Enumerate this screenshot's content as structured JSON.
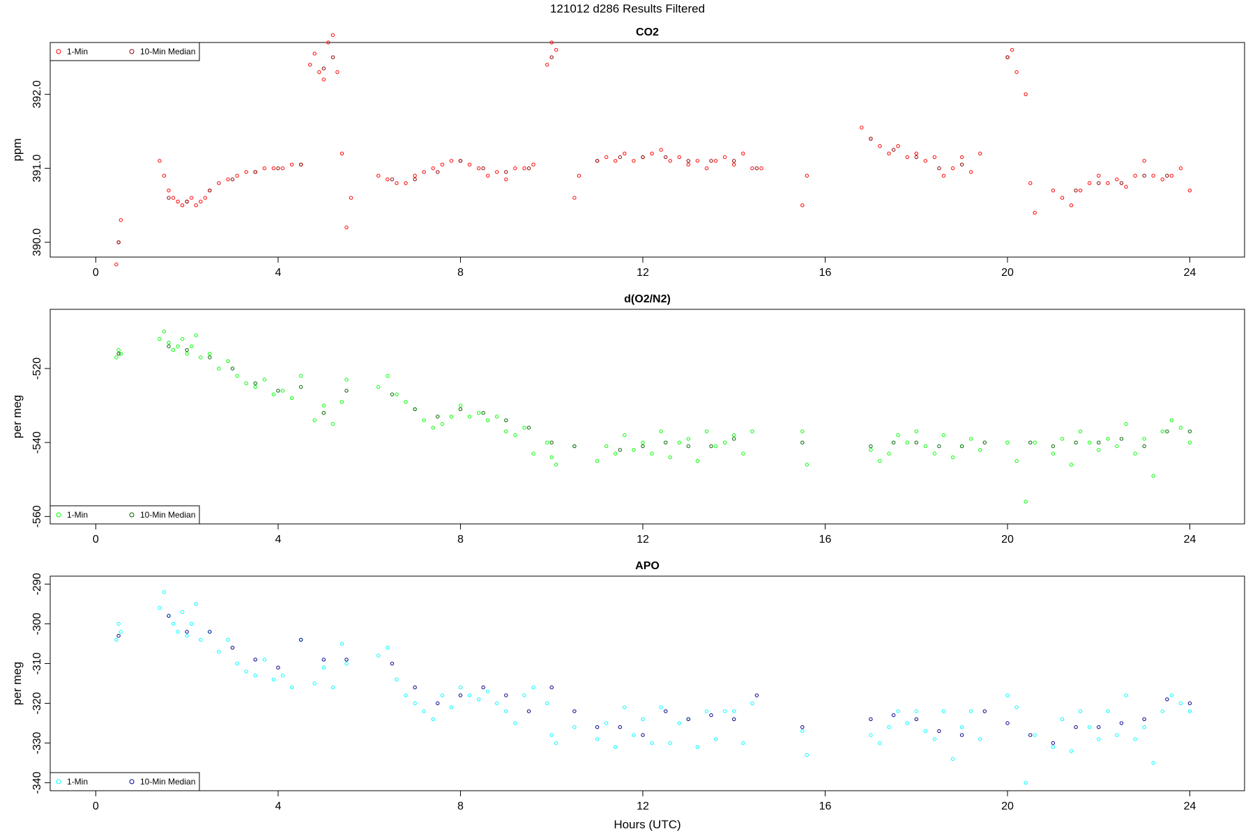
{
  "page": {
    "title": "121012   d286   Results Filtered"
  },
  "chart_data": [
    {
      "type": "scatter",
      "title": "CO2",
      "xlabel": "",
      "ylabel": "ppm",
      "xlim": [
        -1.0,
        25.2
      ],
      "ylim": [
        389.8,
        392.7
      ],
      "xticks": [
        0,
        4,
        8,
        12,
        16,
        20,
        24
      ],
      "xtick_labels": [
        "0",
        "4",
        "8",
        "12",
        "16",
        "20",
        "24"
      ],
      "yticks": [
        390.0,
        391.0,
        392.0
      ],
      "ytick_labels": [
        "390.0",
        "391.0",
        "392.0"
      ],
      "legend": {
        "placement": "top-left",
        "entries": [
          "1-Min",
          "10-Min Median"
        ]
      },
      "series": [
        {
          "name": "1-Min",
          "color": "#ff0000",
          "x": [
            0.45,
            0.5,
            0.55,
            1.4,
            1.5,
            1.6,
            1.7,
            1.8,
            1.9,
            2.0,
            2.1,
            2.2,
            2.3,
            2.4,
            2.5,
            2.7,
            2.9,
            3.1,
            3.3,
            3.5,
            3.7,
            3.9,
            4.1,
            4.3,
            4.5,
            4.7,
            4.8,
            4.9,
            5.0,
            5.1,
            5.2,
            5.3,
            5.4,
            5.5,
            5.6,
            6.2,
            6.4,
            6.6,
            6.8,
            7.0,
            7.2,
            7.4,
            7.6,
            7.8,
            8.0,
            8.2,
            8.4,
            8.6,
            8.8,
            9.0,
            9.2,
            9.4,
            9.6,
            9.9,
            10.0,
            10.1,
            10.5,
            10.6,
            11.0,
            11.2,
            11.4,
            11.6,
            11.8,
            12.0,
            12.2,
            12.4,
            12.6,
            12.8,
            13.0,
            13.2,
            13.4,
            13.6,
            13.8,
            14.0,
            14.2,
            14.4,
            14.6,
            15.5,
            15.6,
            16.8,
            17.0,
            17.2,
            17.4,
            17.6,
            17.8,
            18.0,
            18.2,
            18.4,
            18.6,
            18.8,
            19.0,
            19.2,
            19.4,
            20.0,
            20.1,
            20.2,
            20.4,
            20.5,
            20.6,
            21.0,
            21.2,
            21.4,
            21.6,
            21.8,
            22.0,
            22.2,
            22.4,
            22.6,
            22.8,
            23.0,
            23.2,
            23.4,
            23.6,
            23.8,
            24.0
          ],
          "y": [
            389.7,
            390.0,
            390.3,
            391.1,
            390.9,
            390.7,
            390.6,
            390.55,
            390.5,
            390.55,
            390.6,
            390.5,
            390.55,
            390.6,
            390.7,
            390.8,
            390.85,
            390.9,
            390.95,
            390.95,
            391.0,
            391.0,
            391.0,
            391.05,
            391.05,
            392.4,
            392.55,
            392.3,
            392.2,
            392.7,
            392.8,
            392.3,
            391.2,
            390.2,
            390.6,
            390.9,
            390.85,
            390.8,
            390.8,
            390.9,
            390.95,
            391.0,
            391.05,
            391.1,
            391.1,
            391.05,
            391.0,
            390.9,
            390.95,
            390.85,
            391.0,
            391.0,
            391.05,
            392.4,
            392.7,
            392.6,
            390.6,
            390.9,
            391.1,
            391.15,
            391.1,
            391.2,
            391.1,
            391.15,
            391.2,
            391.25,
            391.1,
            391.15,
            391.05,
            391.1,
            391.0,
            391.1,
            391.15,
            391.05,
            391.2,
            391.0,
            391.0,
            390.5,
            390.9,
            391.55,
            391.4,
            391.3,
            391.2,
            391.3,
            391.15,
            391.2,
            391.1,
            391.15,
            390.9,
            391.0,
            391.15,
            390.95,
            391.2,
            392.5,
            392.6,
            392.3,
            392.0,
            390.8,
            390.4,
            390.7,
            390.6,
            390.5,
            390.7,
            390.8,
            390.9,
            390.8,
            390.85,
            390.75,
            390.9,
            391.1,
            390.9,
            390.85,
            390.9,
            391.0,
            390.7
          ]
        },
        {
          "name": "10-Min Median",
          "color": "#8b0000",
          "x": [
            0.5,
            1.6,
            2.0,
            2.5,
            3.0,
            3.5,
            4.0,
            4.5,
            5.0,
            5.2,
            6.5,
            7.0,
            7.5,
            8.0,
            8.5,
            9.0,
            9.5,
            10.0,
            11.0,
            11.5,
            12.0,
            12.5,
            13.0,
            13.5,
            14.0,
            14.5,
            17.0,
            17.5,
            18.0,
            18.5,
            19.0,
            20.0,
            21.5,
            22.0,
            22.5,
            23.0,
            23.5
          ],
          "y": [
            390.0,
            390.6,
            390.55,
            390.7,
            390.85,
            390.95,
            391.0,
            391.05,
            392.35,
            392.5,
            390.85,
            390.85,
            390.95,
            391.1,
            391.0,
            390.95,
            391.0,
            392.5,
            391.1,
            391.15,
            391.15,
            391.15,
            391.1,
            391.1,
            391.1,
            391.0,
            391.4,
            391.25,
            391.15,
            391.0,
            391.05,
            392.5,
            390.7,
            390.8,
            390.8,
            390.9,
            390.9
          ]
        }
      ]
    },
    {
      "type": "scatter",
      "title": "d(O2/N2)",
      "xlabel": "",
      "ylabel": "per meg",
      "xlim": [
        -1.0,
        25.2
      ],
      "ylim": [
        -562,
        -504
      ],
      "xticks": [
        0,
        4,
        8,
        12,
        16,
        20,
        24
      ],
      "xtick_labels": [
        "0",
        "4",
        "8",
        "12",
        "16",
        "20",
        "24"
      ],
      "yticks": [
        -520,
        -540,
        -560
      ],
      "ytick_labels": [
        "-520",
        "-540",
        "-560"
      ],
      "legend": {
        "placement": "bottom-left",
        "entries": [
          "1-Min",
          "10-Min Median"
        ]
      },
      "series": [
        {
          "name": "1-Min",
          "color": "#00ff00",
          "x": [
            0.45,
            0.5,
            0.55,
            1.4,
            1.5,
            1.6,
            1.7,
            1.8,
            1.9,
            2.0,
            2.1,
            2.2,
            2.3,
            2.5,
            2.7,
            2.9,
            3.1,
            3.3,
            3.5,
            3.7,
            3.9,
            4.1,
            4.3,
            4.5,
            4.8,
            5.0,
            5.2,
            5.4,
            5.5,
            6.2,
            6.4,
            6.6,
            6.8,
            7.0,
            7.2,
            7.4,
            7.6,
            7.8,
            8.0,
            8.2,
            8.4,
            8.6,
            8.8,
            9.0,
            9.2,
            9.4,
            9.6,
            9.9,
            10.0,
            10.1,
            10.5,
            11.0,
            11.2,
            11.4,
            11.6,
            11.8,
            12.0,
            12.2,
            12.4,
            12.6,
            12.8,
            13.0,
            13.2,
            13.4,
            13.6,
            13.8,
            14.0,
            14.2,
            14.4,
            15.5,
            15.6,
            17.0,
            17.2,
            17.4,
            17.6,
            17.8,
            18.0,
            18.2,
            18.4,
            18.6,
            18.8,
            19.0,
            19.2,
            19.4,
            20.0,
            20.2,
            20.4,
            20.6,
            21.0,
            21.2,
            21.4,
            21.6,
            21.8,
            22.0,
            22.2,
            22.4,
            22.6,
            22.8,
            23.0,
            23.2,
            23.4,
            23.6,
            23.8,
            24.0
          ],
          "y": [
            -517,
            -515,
            -516,
            -512,
            -510,
            -513,
            -515,
            -514,
            -512,
            -516,
            -514,
            -511,
            -517,
            -516,
            -520,
            -518,
            -522,
            -524,
            -525,
            -523,
            -527,
            -526,
            -528,
            -522,
            -534,
            -530,
            -535,
            -529,
            -523,
            -525,
            -522,
            -527,
            -529,
            -531,
            -534,
            -536,
            -535,
            -533,
            -530,
            -533,
            -532,
            -534,
            -533,
            -537,
            -538,
            -536,
            -543,
            -540,
            -544,
            -546,
            -541,
            -545,
            -541,
            -543,
            -538,
            -542,
            -540,
            -543,
            -537,
            -544,
            -540,
            -539,
            -545,
            -537,
            -541,
            -540,
            -538,
            -543,
            -537,
            -537,
            -546,
            -542,
            -545,
            -543,
            -538,
            -540,
            -537,
            -541,
            -543,
            -538,
            -544,
            -541,
            -539,
            -542,
            -540,
            -545,
            -556,
            -540,
            -543,
            -539,
            -546,
            -537,
            -540,
            -542,
            -539,
            -541,
            -535,
            -543,
            -539,
            -549,
            -537,
            -534,
            -536,
            -540
          ]
        },
        {
          "name": "10-Min Median",
          "color": "#006400",
          "x": [
            0.5,
            1.6,
            2.0,
            2.5,
            3.0,
            3.5,
            4.0,
            4.5,
            5.0,
            5.5,
            6.5,
            7.0,
            7.5,
            8.0,
            8.5,
            9.0,
            9.5,
            10.0,
            10.5,
            11.5,
            12.0,
            12.5,
            13.0,
            13.5,
            14.0,
            15.5,
            17.0,
            17.5,
            18.0,
            18.5,
            19.0,
            19.5,
            20.5,
            21.0,
            21.5,
            22.0,
            22.5,
            23.0,
            23.5,
            24.0
          ],
          "y": [
            -516,
            -514,
            -515,
            -517,
            -520,
            -524,
            -526,
            -525,
            -532,
            -526,
            -527,
            -531,
            -533,
            -531,
            -532,
            -534,
            -536,
            -540,
            -541,
            -542,
            -541,
            -540,
            -541,
            -541,
            -539,
            -540,
            -541,
            -540,
            -540,
            -541,
            -541,
            -540,
            -540,
            -541,
            -540,
            -540,
            -539,
            -541,
            -537,
            -537
          ]
        }
      ]
    },
    {
      "type": "scatter",
      "title": "APO",
      "xlabel": "Hours (UTC)",
      "ylabel": "per meg",
      "xlim": [
        -1.0,
        25.2
      ],
      "ylim": [
        -342,
        -288
      ],
      "xticks": [
        0,
        4,
        8,
        12,
        16,
        20,
        24
      ],
      "xtick_labels": [
        "0",
        "4",
        "8",
        "12",
        "16",
        "20",
        "24"
      ],
      "yticks": [
        -290,
        -300,
        -310,
        -320,
        -330,
        -340
      ],
      "ytick_labels": [
        "-290",
        "-300",
        "-310",
        "-320",
        "-330",
        "-340"
      ],
      "legend": {
        "placement": "bottom-left",
        "entries": [
          "1-Min",
          "10-Min Median"
        ]
      },
      "series": [
        {
          "name": "1-Min",
          "color": "#00ffff",
          "x": [
            0.45,
            0.5,
            0.55,
            1.4,
            1.5,
            1.6,
            1.7,
            1.8,
            1.9,
            2.0,
            2.1,
            2.2,
            2.3,
            2.5,
            2.7,
            2.9,
            3.1,
            3.3,
            3.5,
            3.7,
            3.9,
            4.1,
            4.3,
            4.5,
            4.8,
            5.0,
            5.2,
            5.4,
            5.5,
            6.2,
            6.4,
            6.6,
            6.8,
            7.0,
            7.2,
            7.4,
            7.6,
            7.8,
            8.0,
            8.2,
            8.4,
            8.6,
            8.8,
            9.0,
            9.2,
            9.4,
            9.6,
            9.9,
            10.0,
            10.1,
            10.5,
            11.0,
            11.2,
            11.4,
            11.6,
            11.8,
            12.0,
            12.2,
            12.4,
            12.6,
            12.8,
            13.0,
            13.2,
            13.4,
            13.6,
            13.8,
            14.0,
            14.2,
            14.4,
            15.5,
            15.6,
            17.0,
            17.2,
            17.4,
            17.6,
            17.8,
            18.0,
            18.2,
            18.4,
            18.6,
            18.8,
            19.0,
            19.2,
            19.4,
            20.0,
            20.2,
            20.4,
            20.6,
            21.0,
            21.2,
            21.4,
            21.6,
            21.8,
            22.0,
            22.2,
            22.4,
            22.6,
            22.8,
            23.0,
            23.2,
            23.4,
            23.6,
            23.8,
            24.0
          ],
          "y": [
            -304,
            -300,
            -302,
            -296,
            -292,
            -298,
            -300,
            -302,
            -297,
            -303,
            -300,
            -295,
            -304,
            -302,
            -307,
            -304,
            -310,
            -312,
            -313,
            -309,
            -314,
            -313,
            -316,
            -304,
            -315,
            -311,
            -316,
            -305,
            -310,
            -308,
            -306,
            -314,
            -318,
            -320,
            -322,
            -324,
            -318,
            -321,
            -316,
            -318,
            -319,
            -317,
            -320,
            -322,
            -325,
            -318,
            -316,
            -320,
            -328,
            -330,
            -326,
            -329,
            -325,
            -331,
            -321,
            -328,
            -324,
            -330,
            -321,
            -330,
            -325,
            -324,
            -331,
            -322,
            -329,
            -322,
            -322,
            -330,
            -320,
            -327,
            -333,
            -328,
            -330,
            -326,
            -322,
            -325,
            -322,
            -327,
            -329,
            -322,
            -334,
            -326,
            -322,
            -329,
            -318,
            -321,
            -340,
            -328,
            -331,
            -324,
            -332,
            -322,
            -326,
            -329,
            -322,
            -328,
            -318,
            -329,
            -326,
            -335,
            -322,
            -318,
            -320,
            -322
          ]
        },
        {
          "name": "10-Min Median",
          "color": "#00008b",
          "x": [
            0.5,
            1.6,
            2.0,
            2.5,
            3.0,
            3.5,
            4.0,
            4.5,
            5.0,
            5.5,
            6.5,
            7.0,
            7.5,
            8.0,
            8.5,
            9.0,
            9.5,
            10.0,
            10.5,
            11.0,
            11.5,
            12.0,
            12.5,
            13.0,
            13.5,
            14.0,
            14.5,
            15.5,
            17.0,
            17.5,
            18.0,
            18.5,
            19.0,
            19.5,
            20.0,
            20.5,
            21.0,
            21.5,
            22.0,
            22.5,
            23.0,
            23.5,
            24.0
          ],
          "y": [
            -303,
            -298,
            -302,
            -302,
            -306,
            -309,
            -311,
            -304,
            -309,
            -309,
            -310,
            -316,
            -320,
            -318,
            -316,
            -318,
            -322,
            -316,
            -322,
            -326,
            -326,
            -328,
            -322,
            -324,
            -323,
            -324,
            -318,
            -326,
            -324,
            -323,
            -324,
            -327,
            -328,
            -322,
            -325,
            -328,
            -330,
            -326,
            -326,
            -325,
            -324,
            -319,
            -320
          ]
        }
      ]
    }
  ]
}
